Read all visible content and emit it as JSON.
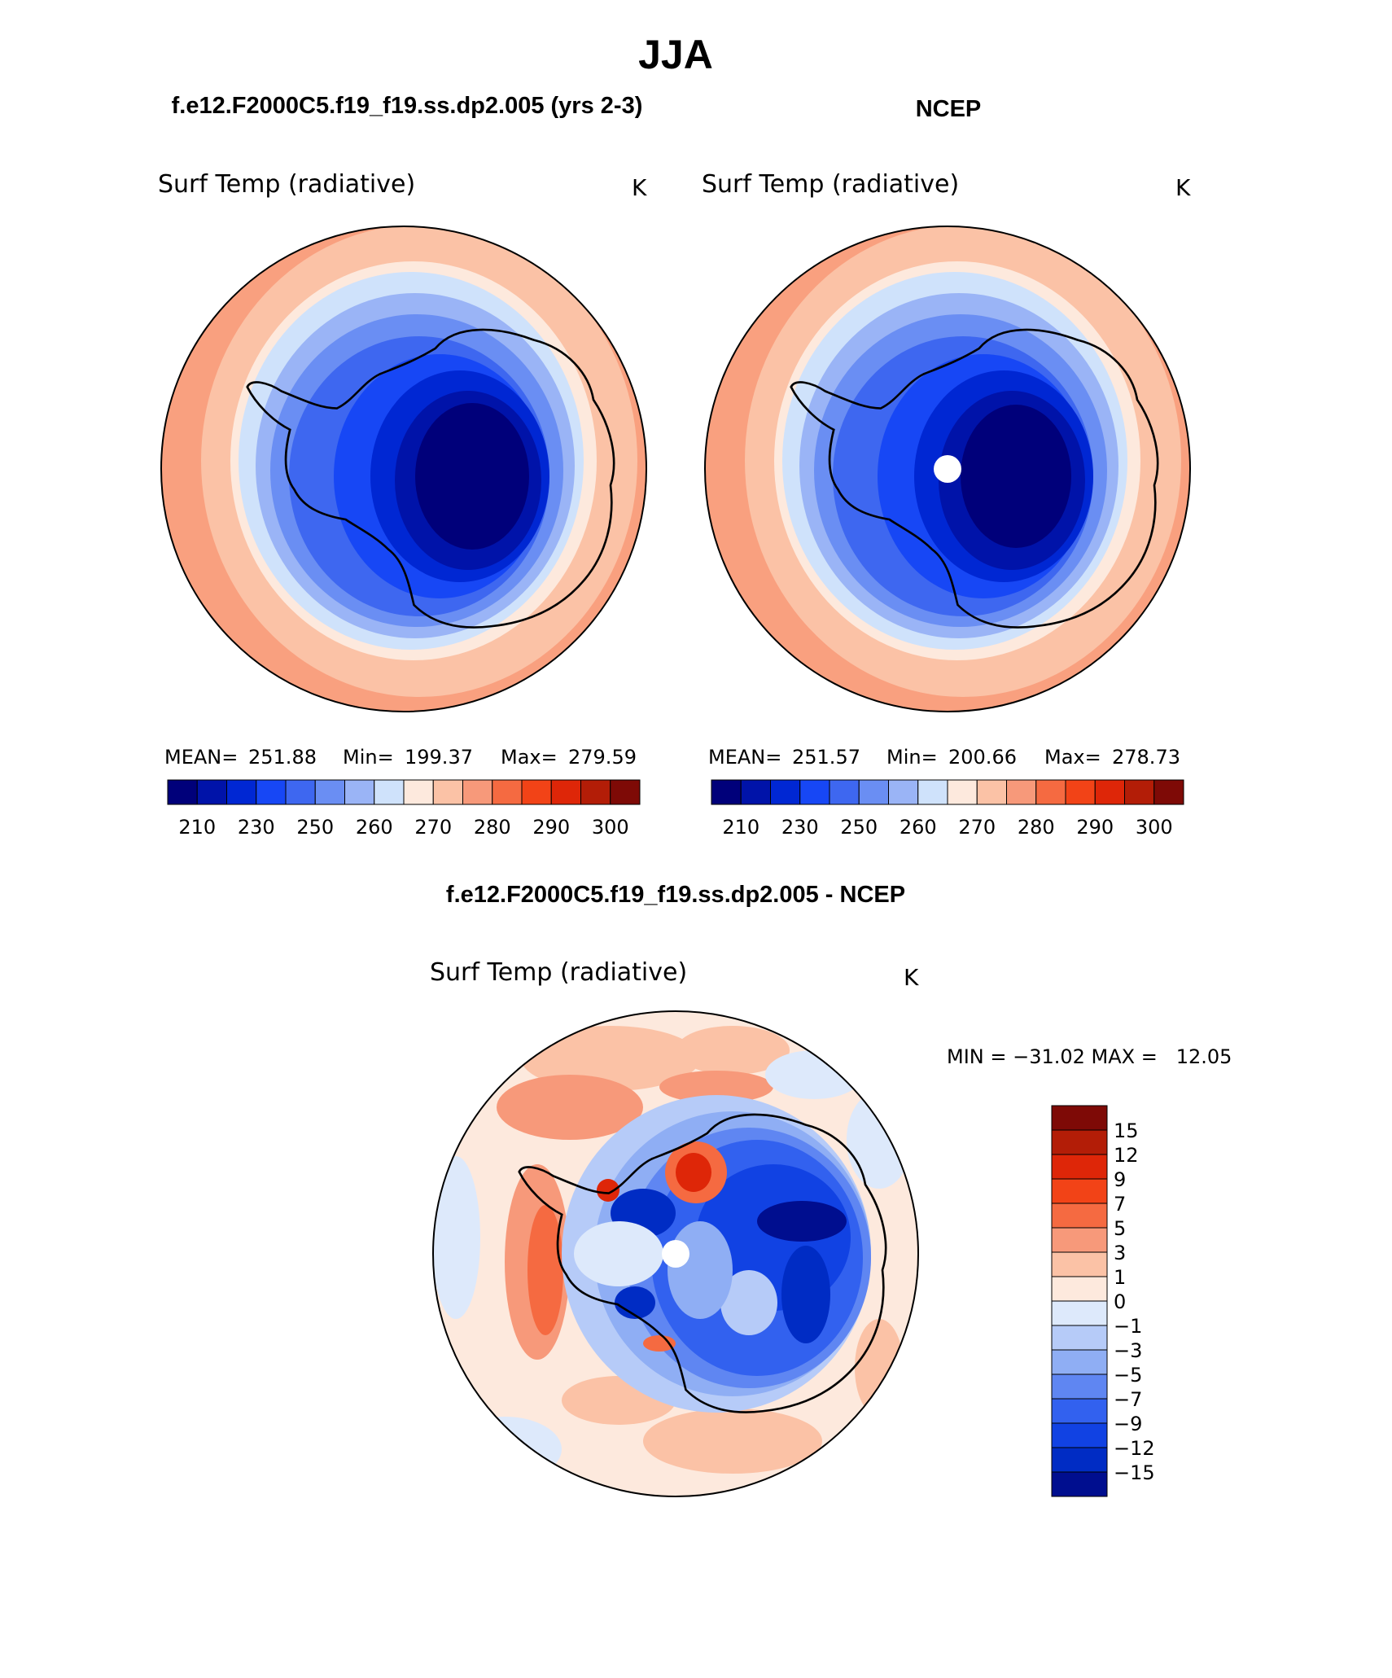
{
  "title": "JJA",
  "panels": [
    {
      "id": "model",
      "case_title": "f.e12.F2000C5.f19_f19.ss.dp2.005 (yrs 2-3)",
      "variable": "Surf Temp (radiative)",
      "units": "K",
      "stats": {
        "mean_label": "MEAN=",
        "mean": "251.88",
        "min_label": "Min=",
        "min": "199.37",
        "max_label": "Max=",
        "max": "279.59"
      },
      "has_pole_hole": false
    },
    {
      "id": "obs",
      "case_title": "NCEP",
      "variable": "Surf Temp (radiative)",
      "units": "K",
      "stats": {
        "mean_label": "MEAN=",
        "mean": "251.57",
        "min_label": "Min=",
        "min": "200.66",
        "max_label": "Max=",
        "max": "278.73"
      },
      "has_pole_hole": true
    }
  ],
  "abs_colorbar": {
    "colors": [
      "#00007a",
      "#0013a9",
      "#0027d3",
      "#1747f5",
      "#3e67f0",
      "#6a8ef3",
      "#9ab4f6",
      "#cfe2fb",
      "#fde9dd",
      "#fbc2a6",
      "#f7997a",
      "#f56a41",
      "#f24317",
      "#de2608",
      "#b31d07",
      "#7e0a06"
    ],
    "tick_labels": [
      "210",
      "230",
      "250",
      "260",
      "270",
      "280",
      "290",
      "300"
    ]
  },
  "diff": {
    "title": "f.e12.F2000C5.f19_f19.ss.dp2.005 - NCEP",
    "variable": "Surf Temp (radiative)",
    "units": "K",
    "minmax_text": "MIN = −31.02 MAX =   12.05",
    "colorbar": {
      "colors": [
        "#7e0a06",
        "#b31d07",
        "#de2608",
        "#f24317",
        "#f56a41",
        "#f7997a",
        "#fbc2a6",
        "#fde9dd",
        "#dde9fb",
        "#b6cbf8",
        "#8faef4",
        "#5f86f2",
        "#3261ef",
        "#1142e3",
        "#002cc4",
        "#000e8f"
      ],
      "tick_labels": [
        "15",
        "12",
        "9",
        "7",
        "5",
        "3",
        "1",
        "0",
        "−1",
        "−3",
        "−5",
        "−7",
        "−9",
        "−12",
        "−15"
      ]
    }
  }
}
